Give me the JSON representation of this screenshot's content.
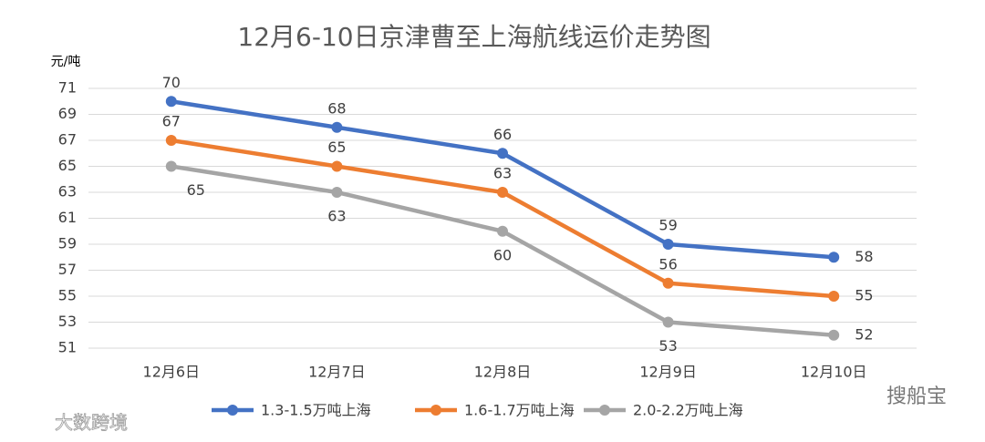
{
  "chart_data": {
    "type": "line",
    "title": "12月6-10日京津曹至上海航线运价走势图",
    "y_label": "元/吨",
    "categories": [
      "12月6日",
      "12月7日",
      "12月8日",
      "12月9日",
      "12月10日"
    ],
    "series": [
      {
        "name": "1.3-1.5万吨上海",
        "color": "#4472c4",
        "values": [
          70,
          68,
          66,
          59,
          58
        ]
      },
      {
        "name": "1.6-1.7万吨上海",
        "color": "#ed7d31",
        "values": [
          67,
          65,
          63,
          56,
          55
        ]
      },
      {
        "name": "2.0-2.2万吨上海",
        "color": "#a5a5a5",
        "values": [
          65,
          63,
          60,
          53,
          52
        ]
      }
    ],
    "ylim": [
      51,
      71
    ],
    "yticks": [
      51,
      53,
      55,
      57,
      59,
      61,
      63,
      65,
      67,
      69,
      71
    ],
    "grid": true,
    "legend": "bottom",
    "watermarks": [
      "大数跨境",
      "搜船宝"
    ]
  }
}
